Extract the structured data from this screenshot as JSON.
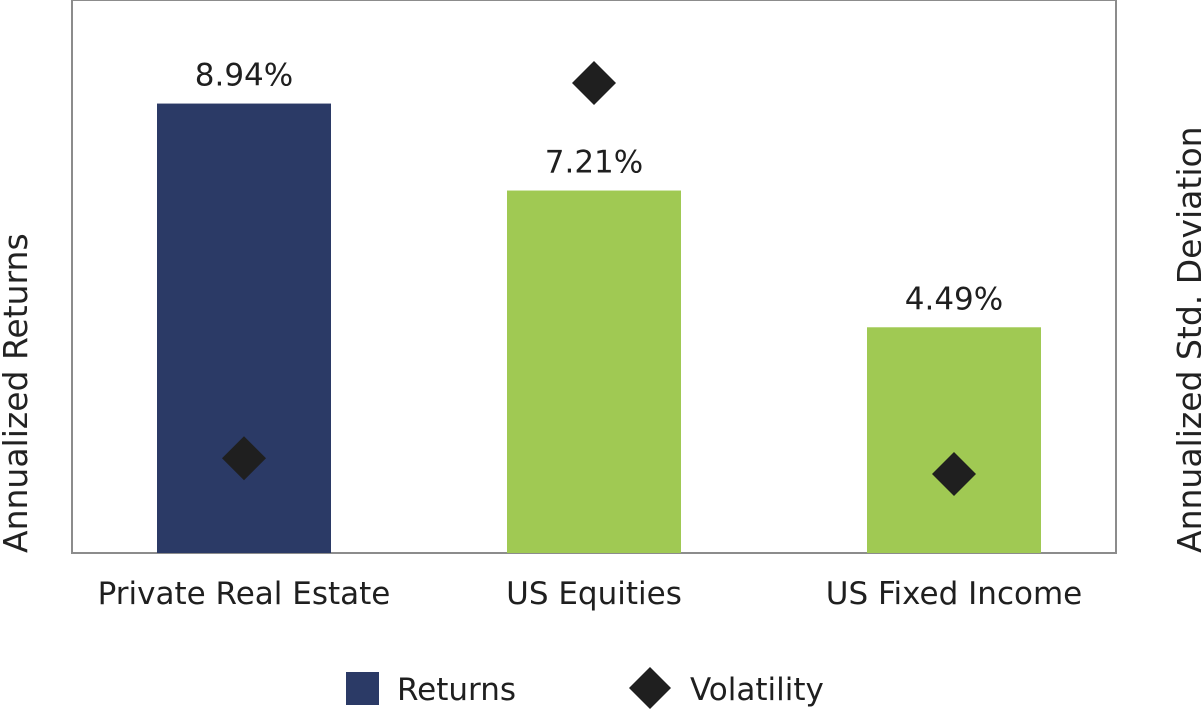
{
  "chart_data": {
    "type": "bar",
    "categories": [
      "Private Real Estate",
      "US Equities",
      "US Fixed Income"
    ],
    "series": [
      {
        "name": "Returns",
        "values": [
          8.94,
          7.21,
          4.49
        ],
        "labels": [
          "8.94%",
          "7.21%",
          "4.49%"
        ],
        "colors": [
          "#2b3a66",
          "#a0c953",
          "#a0c953"
        ]
      },
      {
        "name": "Volatility",
        "marker": "diamond",
        "axis": "right",
        "values": [
          2.4,
          11.9,
          2.0
        ],
        "color": "#1f1f1f"
      }
    ],
    "ylabel": "Annualized Returns",
    "y2label": "Annualized Std. Deviation",
    "ylim": [
      0,
      11
    ],
    "y2lim": [
      0,
      14
    ],
    "legend": {
      "position": "bottom",
      "entries": [
        {
          "name": "Returns",
          "color": "#2b3a66",
          "symbol": "square"
        },
        {
          "name": "Volatility",
          "color": "#1f1f1f",
          "symbol": "diamond"
        }
      ]
    },
    "grid": false
  }
}
